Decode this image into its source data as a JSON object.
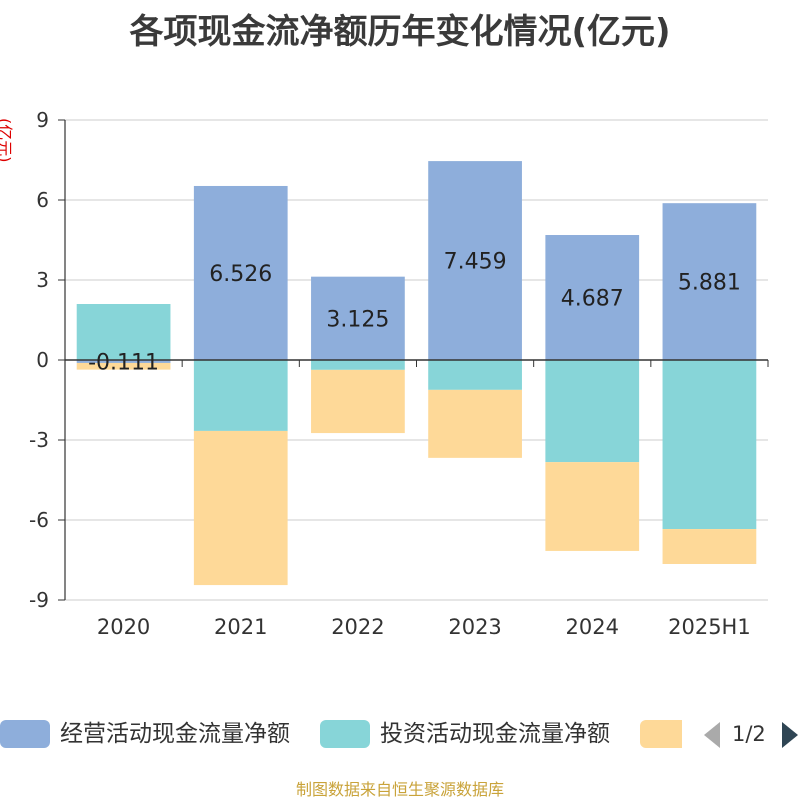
{
  "chart_data": {
    "type": "bar",
    "stacked": true,
    "title": "各项现金流净额历年变化情况(亿元)",
    "xlabel": "",
    "ylabel": "(亿元)",
    "ylabel_color": "#dd0000",
    "ylim": [
      -9,
      9
    ],
    "yticks": [
      9,
      6,
      3,
      0,
      -3,
      -6,
      -9
    ],
    "ytick_labels": [
      "9",
      "6",
      "3",
      "0",
      "-3",
      "-6",
      "-9"
    ],
    "categories": [
      "2020",
      "2021",
      "2022",
      "2023",
      "2024",
      "2025H1"
    ],
    "grid": true,
    "legend": "bottom",
    "series": [
      {
        "name": "经营活动现金流量净额",
        "color": "#8eaedb",
        "values": [
          -0.111,
          6.526,
          3.125,
          7.459,
          4.687,
          5.881
        ],
        "show_labels": true
      },
      {
        "name": "投资活动现金流量净额",
        "color": "#87d5d8",
        "values": [
          2.1,
          -2.66,
          -0.37,
          -1.12,
          -3.83,
          -6.34
        ],
        "show_labels": false
      },
      {
        "name": "",
        "color": "#fed998",
        "values": [
          -0.25,
          -5.78,
          -2.37,
          -2.55,
          -3.33,
          -1.31
        ],
        "show_labels": false
      }
    ]
  },
  "legend": {
    "page": "1/2",
    "prev_icon": "triangle-left-icon",
    "next_icon": "triangle-right-icon",
    "prev_color": "#aaaaaa",
    "next_color": "#2f4554"
  },
  "footer": {
    "text": "制图数据来自恒生聚源数据库",
    "color": "#c9a33a"
  }
}
